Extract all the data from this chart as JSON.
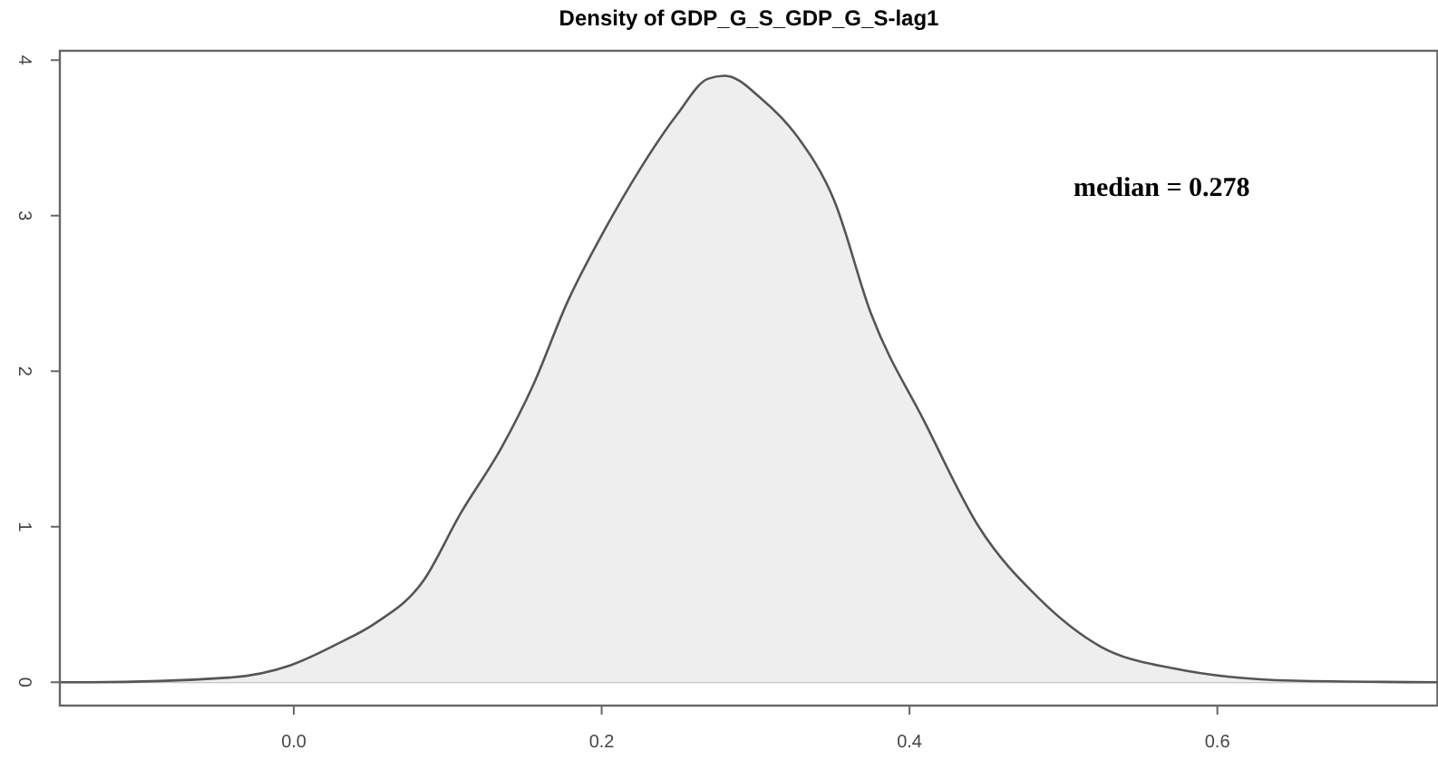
{
  "chart_data": {
    "type": "area",
    "title": "Density of GDP_G_S_GDP_G_S-lag1",
    "x": [
      -0.152,
      -0.132,
      -0.042,
      -0.002,
      0.029,
      0.053,
      0.084,
      0.108,
      0.135,
      0.155,
      0.178,
      0.202,
      0.225,
      0.249,
      0.269,
      0.28,
      0.304,
      0.327,
      0.351,
      0.375,
      0.41,
      0.445,
      0.484,
      0.524,
      0.571,
      0.649,
      0.743
    ],
    "series": [
      {
        "color": "#555555",
        "values": [
          0,
          0,
          0.03,
          0.11,
          0.25,
          0.38,
          0.65,
          1.08,
          1.51,
          1.9,
          2.45,
          2.91,
          3.3,
          3.65,
          3.88,
          3.9,
          3.75,
          3.51,
          3.1,
          2.37,
          1.67,
          1.0,
          0.54,
          0.23,
          0.09,
          0.01,
          0
        ]
      }
    ],
    "xlim": [
      -0.152,
      0.743
    ],
    "ylim": [
      -0.15,
      4.06
    ],
    "xticks": [
      {
        "value": 0,
        "label": "0.0"
      },
      0.2,
      0.4,
      0.6
    ],
    "yticks": [
      0,
      1,
      2,
      3,
      4
    ],
    "ref_lines": [
      {
        "axis": "y",
        "value": 0,
        "color": "#bbbbbb"
      }
    ],
    "annotations": [
      "median = 0.278"
    ],
    "grid": false
  }
}
